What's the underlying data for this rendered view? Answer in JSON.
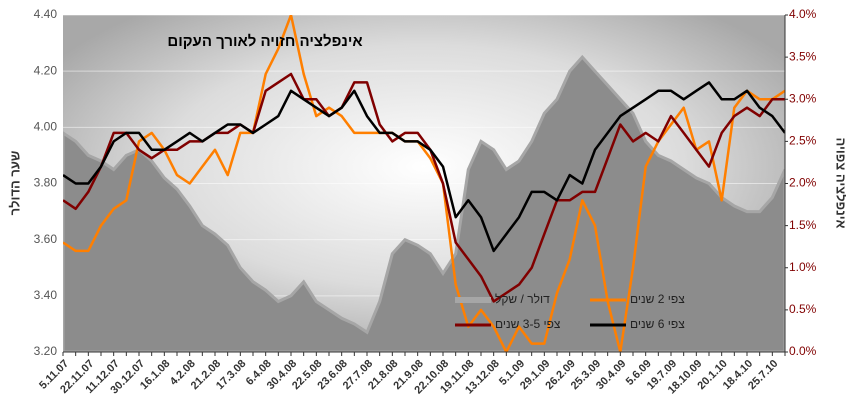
{
  "chart_data": {
    "type": "line",
    "title": "אינפלציה חזויה לאורך העקום",
    "y_label": "שער הדולר",
    "y2_label": "אינפלציה צפויה",
    "categories": [
      "5.11.07",
      null,
      "22.11.07",
      null,
      "11.12.07",
      null,
      "30.12.07",
      null,
      "16.1.08",
      null,
      "4.2.08",
      null,
      "21.2.08",
      null,
      "17.3.08",
      null,
      "6.4.08",
      null,
      "30.4.08",
      null,
      "22.5.08",
      null,
      "23.6.08",
      null,
      "27.7.08",
      null,
      "21.8.08",
      null,
      "21.9.08",
      null,
      "22.10.08",
      null,
      "19.11.08",
      null,
      "13.12.08",
      null,
      "5.1.09",
      null,
      "29.1.09",
      null,
      "26.2.09",
      null,
      "25.3.09",
      null,
      "30.4.09",
      null,
      "5.6.09",
      null,
      "19.7.09",
      null,
      "18.10.09",
      null,
      "20.1.10",
      null,
      "18.4.10",
      null,
      "25.7.10",
      null
    ],
    "series": [
      {
        "name": "דולר / שקל",
        "type": "area",
        "color": "#8c8c8c",
        "values": [
          3.98,
          3.95,
          3.9,
          3.88,
          3.85,
          3.9,
          3.92,
          3.88,
          3.82,
          3.78,
          3.72,
          3.65,
          3.62,
          3.58,
          3.5,
          3.45,
          3.42,
          3.38,
          3.4,
          3.45,
          3.38,
          3.35,
          3.32,
          3.3,
          3.27,
          3.38,
          3.55,
          3.6,
          3.58,
          3.55,
          3.48,
          3.55,
          3.85,
          3.95,
          3.92,
          3.85,
          3.88,
          3.95,
          4.05,
          4.1,
          4.2,
          4.25,
          4.2,
          4.15,
          4.1,
          4.05,
          3.95,
          3.9,
          3.88,
          3.85,
          3.82,
          3.8,
          3.75,
          3.72,
          3.7,
          3.7,
          3.75,
          3.85
        ]
      },
      {
        "name": "צפי 2 שנים",
        "color": "#ff7f00",
        "axis": "y2",
        "values": [
          1.3,
          1.2,
          1.2,
          1.5,
          1.7,
          1.8,
          2.5,
          2.6,
          2.4,
          2.1,
          2.0,
          2.2,
          2.4,
          2.1,
          2.6,
          2.6,
          3.3,
          3.6,
          4.0,
          3.3,
          2.8,
          2.9,
          2.8,
          2.6,
          2.6,
          2.6,
          2.6,
          2.5,
          2.5,
          2.3,
          2.0,
          0.8,
          0.3,
          0.5,
          0.3,
          0.0,
          0.3,
          0.1,
          0.1,
          0.7,
          1.1,
          1.8,
          1.5,
          0.6,
          0.0,
          1.0,
          2.2,
          2.5,
          2.7,
          2.9,
          2.4,
          2.5,
          1.8,
          2.9,
          3.1,
          3.0,
          3.0,
          3.1
        ]
      },
      {
        "name": "צפי 3-5 שנים",
        "color": "#800000",
        "axis": "y2",
        "values": [
          1.8,
          1.7,
          1.9,
          2.2,
          2.6,
          2.6,
          2.4,
          2.3,
          2.4,
          2.4,
          2.5,
          2.5,
          2.6,
          2.6,
          2.7,
          2.6,
          3.1,
          3.2,
          3.3,
          3.0,
          3.0,
          2.8,
          2.9,
          3.2,
          3.2,
          2.7,
          2.5,
          2.6,
          2.6,
          2.4,
          2.0,
          1.3,
          1.1,
          0.9,
          0.6,
          0.7,
          0.8,
          1.0,
          1.4,
          1.8,
          1.8,
          1.9,
          1.9,
          2.3,
          2.7,
          2.5,
          2.6,
          2.5,
          2.8,
          2.6,
          2.4,
          2.2,
          2.6,
          2.8,
          2.9,
          2.8,
          3.0,
          3.0
        ]
      },
      {
        "name": "צפי 6 שנים",
        "color": "#000000",
        "axis": "y2",
        "values": [
          2.1,
          2.0,
          2.0,
          2.2,
          2.5,
          2.6,
          2.6,
          2.4,
          2.4,
          2.5,
          2.6,
          2.5,
          2.6,
          2.7,
          2.7,
          2.6,
          2.7,
          2.8,
          3.1,
          3.0,
          2.9,
          2.8,
          2.9,
          3.1,
          2.8,
          2.6,
          2.6,
          2.5,
          2.5,
          2.4,
          2.2,
          1.6,
          1.8,
          1.6,
          1.2,
          1.4,
          1.6,
          1.9,
          1.9,
          1.8,
          2.1,
          2.0,
          2.4,
          2.6,
          2.8,
          2.9,
          3.0,
          3.1,
          3.1,
          3.0,
          3.1,
          3.2,
          3.0,
          3.0,
          3.1,
          2.9,
          2.8,
          2.6
        ]
      }
    ],
    "ylim": [
      3.2,
      4.4
    ],
    "yticks": [
      {
        "value": 3.2,
        "label": "3.20"
      },
      {
        "value": 3.4,
        "label": "3.40"
      },
      {
        "value": 3.6,
        "label": "3.60"
      },
      {
        "value": 3.8,
        "label": "3.80"
      },
      {
        "value": 4.0,
        "label": "4.00"
      },
      {
        "value": 4.2,
        "label": "4.20"
      },
      {
        "value": 4.4,
        "label": "4.40"
      }
    ],
    "y2lim": [
      0,
      4
    ],
    "y2ticks": [
      {
        "value": 0,
        "label": "0.0%"
      },
      {
        "value": 0.5,
        "label": "0.5%"
      },
      {
        "value": 1,
        "label": "1.0%"
      },
      {
        "value": 1.5,
        "label": "1.5%"
      },
      {
        "value": 2,
        "label": "2.0%"
      },
      {
        "value": 2.5,
        "label": "2.5%"
      },
      {
        "value": 3,
        "label": "3.0%"
      },
      {
        "value": 3.5,
        "label": "3.5%"
      },
      {
        "value": 4,
        "label": "4.0%"
      }
    ],
    "y2_color": "#800000",
    "grid": true
  }
}
